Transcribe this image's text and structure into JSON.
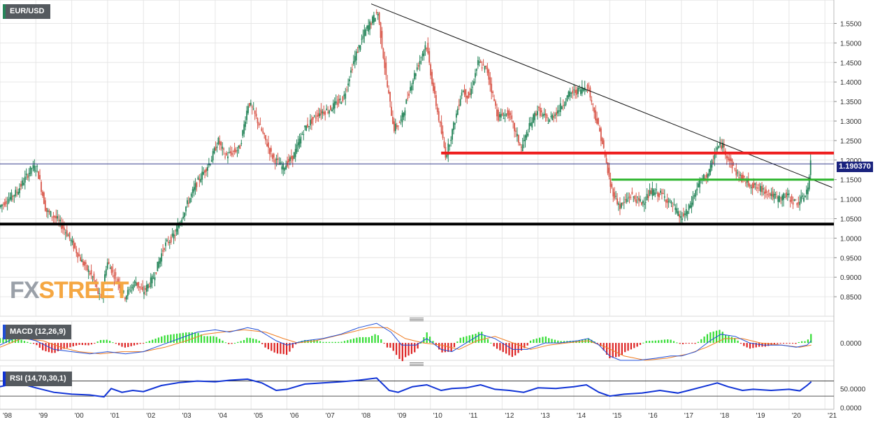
{
  "symbol": "EUR/USD",
  "watermark": {
    "part1": "FX",
    "part2": "STREET"
  },
  "price_tag": "1.190370",
  "colors": {
    "up": "#26855a",
    "down": "#d9594c",
    "grid": "#e6e6e6",
    "resistance": "#ee1c1c",
    "support_green": "#2db52d",
    "support_black": "#000000",
    "price_line": "#1a237e",
    "macd_line": "#1f4ed8",
    "signal_line": "#ef7d22",
    "hist_up": "#33dd33",
    "hist_down": "#dd2222",
    "rsi_line": "#1033d6"
  },
  "chart_data": [
    {
      "panel": "price",
      "type": "candlestick",
      "title": "EUR/USD",
      "ylim": [
        0.8,
        1.61
      ],
      "y_ticks": [
        "1.5500",
        "1.5000",
        "1.4500",
        "1.4000",
        "1.3500",
        "1.3000",
        "1.2500",
        "1.2000",
        "1.1500",
        "1.1000",
        "1.0500",
        "1.0000",
        "0.9500",
        "0.9000",
        "0.8500"
      ],
      "x_ticks": [
        "'98",
        "'99",
        "'00",
        "'01",
        "'02",
        "'03",
        "'04",
        "'05",
        "'06",
        "'07",
        "'08",
        "'09",
        "'10",
        "'11",
        "'12",
        "'13",
        "'14",
        "'15",
        "'16",
        "'17",
        "'18",
        "'19",
        "'20",
        "'21"
      ],
      "x_range": [
        1998.0,
        2021.25
      ],
      "current_price": 1.19037,
      "path_points": [
        [
          1998.0,
          1.08
        ],
        [
          1998.5,
          1.12
        ],
        [
          1998.9,
          1.18
        ],
        [
          1999.05,
          1.18
        ],
        [
          1999.3,
          1.07
        ],
        [
          1999.6,
          1.05
        ],
        [
          1999.9,
          1.01
        ],
        [
          2000.3,
          0.94
        ],
        [
          2000.6,
          0.9
        ],
        [
          2000.83,
          0.84
        ],
        [
          2001.0,
          0.94
        ],
        [
          2001.3,
          0.89
        ],
        [
          2001.5,
          0.85
        ],
        [
          2001.8,
          0.89
        ],
        [
          2002.0,
          0.86
        ],
        [
          2002.3,
          0.9
        ],
        [
          2002.6,
          0.98
        ],
        [
          2002.9,
          1.01
        ],
        [
          2003.2,
          1.08
        ],
        [
          2003.5,
          1.14
        ],
        [
          2003.9,
          1.2
        ],
        [
          2004.1,
          1.25
        ],
        [
          2004.3,
          1.21
        ],
        [
          2004.7,
          1.23
        ],
        [
          2004.95,
          1.35
        ],
        [
          2005.2,
          1.3
        ],
        [
          2005.6,
          1.21
        ],
        [
          2005.9,
          1.18
        ],
        [
          2006.2,
          1.21
        ],
        [
          2006.5,
          1.28
        ],
        [
          2006.9,
          1.32
        ],
        [
          2007.2,
          1.33
        ],
        [
          2007.6,
          1.36
        ],
        [
          2007.9,
          1.46
        ],
        [
          2008.2,
          1.53
        ],
        [
          2008.55,
          1.58
        ],
        [
          2008.8,
          1.4
        ],
        [
          2009.0,
          1.28
        ],
        [
          2009.2,
          1.3
        ],
        [
          2009.5,
          1.4
        ],
        [
          2009.9,
          1.5
        ],
        [
          2010.1,
          1.38
        ],
        [
          2010.45,
          1.21
        ],
        [
          2010.7,
          1.3
        ],
        [
          2010.9,
          1.38
        ],
        [
          2011.1,
          1.36
        ],
        [
          2011.35,
          1.45
        ],
        [
          2011.6,
          1.43
        ],
        [
          2011.9,
          1.31
        ],
        [
          2012.2,
          1.32
        ],
        [
          2012.55,
          1.23
        ],
        [
          2012.8,
          1.29
        ],
        [
          2013.0,
          1.33
        ],
        [
          2013.3,
          1.3
        ],
        [
          2013.6,
          1.33
        ],
        [
          2013.9,
          1.37
        ],
        [
          2014.2,
          1.38
        ],
        [
          2014.4,
          1.39
        ],
        [
          2014.6,
          1.32
        ],
        [
          2014.8,
          1.25
        ],
        [
          2015.05,
          1.13
        ],
        [
          2015.3,
          1.08
        ],
        [
          2015.6,
          1.11
        ],
        [
          2015.9,
          1.09
        ],
        [
          2016.2,
          1.12
        ],
        [
          2016.5,
          1.11
        ],
        [
          2016.8,
          1.08
        ],
        [
          2017.0,
          1.05
        ],
        [
          2017.2,
          1.07
        ],
        [
          2017.5,
          1.14
        ],
        [
          2017.8,
          1.17
        ],
        [
          2018.0,
          1.23
        ],
        [
          2018.15,
          1.24
        ],
        [
          2018.35,
          1.2
        ],
        [
          2018.6,
          1.16
        ],
        [
          2018.9,
          1.14
        ],
        [
          2019.1,
          1.13
        ],
        [
          2019.4,
          1.12
        ],
        [
          2019.7,
          1.1
        ],
        [
          2019.95,
          1.11
        ],
        [
          2020.2,
          1.09
        ],
        [
          2020.4,
          1.1
        ],
        [
          2020.55,
          1.13
        ],
        [
          2020.62,
          1.19
        ]
      ],
      "annotations": [
        {
          "type": "trendline",
          "label": "descending",
          "from": [
            2008.35,
            1.6
          ],
          "to": [
            2021.2,
            1.13
          ]
        },
        {
          "type": "hline",
          "label": "red resistance",
          "y": 1.218,
          "x_from": 2010.3,
          "x_to": 2021.25
        },
        {
          "type": "hline",
          "label": "green support",
          "y": 1.15,
          "x_from": 2015.05,
          "x_to": 2021.25
        },
        {
          "type": "hline",
          "label": "black support",
          "y": 1.036,
          "x_from": 1998.0,
          "x_to": 2021.25
        }
      ]
    },
    {
      "panel": "macd",
      "type": "line+histogram",
      "title": "MACD (12,26,9)",
      "ylim": [
        -0.08,
        0.1
      ],
      "y_ticks": [
        "0.0000"
      ],
      "macd_points": [
        [
          1998.0,
          -0.01
        ],
        [
          1998.5,
          0.03
        ],
        [
          1999.0,
          0.01
        ],
        [
          1999.5,
          -0.03
        ],
        [
          2000.0,
          -0.04
        ],
        [
          2000.5,
          -0.05
        ],
        [
          2001.0,
          -0.04
        ],
        [
          2001.5,
          -0.05
        ],
        [
          2002.0,
          -0.04
        ],
        [
          2002.5,
          -0.01
        ],
        [
          2003.0,
          0.02
        ],
        [
          2003.5,
          0.05
        ],
        [
          2004.0,
          0.06
        ],
        [
          2004.4,
          0.05
        ],
        [
          2004.9,
          0.07
        ],
        [
          2005.2,
          0.06
        ],
        [
          2005.7,
          0.01
        ],
        [
          2006.0,
          -0.01
        ],
        [
          2006.5,
          0.01
        ],
        [
          2007.0,
          0.02
        ],
        [
          2007.5,
          0.04
        ],
        [
          2008.0,
          0.07
        ],
        [
          2008.5,
          0.09
        ],
        [
          2008.9,
          0.05
        ],
        [
          2009.2,
          -0.01
        ],
        [
          2009.6,
          -0.01
        ],
        [
          2009.9,
          0.02
        ],
        [
          2010.3,
          -0.03
        ],
        [
          2010.6,
          -0.04
        ],
        [
          2011.0,
          0.0
        ],
        [
          2011.4,
          0.04
        ],
        [
          2011.8,
          0.02
        ],
        [
          2012.3,
          -0.03
        ],
        [
          2012.7,
          -0.03
        ],
        [
          2013.2,
          0.0
        ],
        [
          2013.6,
          0.0
        ],
        [
          2014.1,
          0.01
        ],
        [
          2014.4,
          0.02
        ],
        [
          2014.7,
          -0.01
        ],
        [
          2015.0,
          -0.06
        ],
        [
          2015.3,
          -0.08
        ],
        [
          2015.8,
          -0.08
        ],
        [
          2016.3,
          -0.07
        ],
        [
          2016.7,
          -0.06
        ],
        [
          2017.0,
          -0.06
        ],
        [
          2017.4,
          -0.04
        ],
        [
          2017.8,
          0.01
        ],
        [
          2018.1,
          0.04
        ],
        [
          2018.5,
          0.03
        ],
        [
          2018.9,
          0.0
        ],
        [
          2019.3,
          -0.01
        ],
        [
          2019.8,
          -0.01
        ],
        [
          2020.2,
          -0.02
        ],
        [
          2020.5,
          -0.01
        ],
        [
          2020.62,
          0.01
        ]
      ],
      "signal_points": [
        [
          1998.0,
          -0.02
        ],
        [
          1998.6,
          0.02
        ],
        [
          1999.2,
          0.01
        ],
        [
          1999.7,
          -0.02
        ],
        [
          2000.2,
          -0.04
        ],
        [
          2000.8,
          -0.05
        ],
        [
          2001.4,
          -0.04
        ],
        [
          2002.0,
          -0.04
        ],
        [
          2002.6,
          -0.02
        ],
        [
          2003.2,
          0.01
        ],
        [
          2003.7,
          0.04
        ],
        [
          2004.2,
          0.05
        ],
        [
          2004.8,
          0.06
        ],
        [
          2005.4,
          0.05
        ],
        [
          2005.9,
          0.02
        ],
        [
          2006.3,
          0.0
        ],
        [
          2006.8,
          0.01
        ],
        [
          2007.3,
          0.03
        ],
        [
          2007.8,
          0.05
        ],
        [
          2008.3,
          0.07
        ],
        [
          2008.8,
          0.07
        ],
        [
          2009.3,
          0.02
        ],
        [
          2009.8,
          0.0
        ],
        [
          2010.3,
          -0.01
        ],
        [
          2010.8,
          -0.03
        ],
        [
          2011.3,
          0.01
        ],
        [
          2011.8,
          0.03
        ],
        [
          2012.3,
          0.0
        ],
        [
          2012.8,
          -0.03
        ],
        [
          2013.3,
          -0.01
        ],
        [
          2013.8,
          0.0
        ],
        [
          2014.4,
          0.01
        ],
        [
          2014.9,
          -0.02
        ],
        [
          2015.4,
          -0.06
        ],
        [
          2016.0,
          -0.08
        ],
        [
          2016.6,
          -0.07
        ],
        [
          2017.2,
          -0.05
        ],
        [
          2017.7,
          -0.02
        ],
        [
          2018.2,
          0.02
        ],
        [
          2018.7,
          0.02
        ],
        [
          2019.2,
          0.0
        ],
        [
          2019.8,
          -0.01
        ],
        [
          2020.3,
          -0.02
        ],
        [
          2020.62,
          -0.01
        ]
      ]
    },
    {
      "panel": "rsi",
      "type": "line",
      "title": "RSI (14,70,30,1)",
      "ylim": [
        -5,
        110
      ],
      "y_ticks": [
        "50.0000",
        "0.0000"
      ],
      "levels": [
        70,
        30
      ],
      "points": [
        [
          1998.0,
          55
        ],
        [
          1998.5,
          65
        ],
        [
          1999.0,
          52
        ],
        [
          1999.5,
          40
        ],
        [
          2000.0,
          35
        ],
        [
          2000.5,
          33
        ],
        [
          2000.9,
          28
        ],
        [
          2001.1,
          50
        ],
        [
          2001.4,
          40
        ],
        [
          2001.7,
          45
        ],
        [
          2002.0,
          42
        ],
        [
          2002.5,
          58
        ],
        [
          2003.0,
          66
        ],
        [
          2003.5,
          70
        ],
        [
          2004.0,
          68
        ],
        [
          2004.4,
          72
        ],
        [
          2004.9,
          75
        ],
        [
          2005.3,
          65
        ],
        [
          2005.7,
          45
        ],
        [
          2006.0,
          48
        ],
        [
          2006.5,
          62
        ],
        [
          2007.0,
          65
        ],
        [
          2007.5,
          68
        ],
        [
          2008.0,
          72
        ],
        [
          2008.5,
          78
        ],
        [
          2008.85,
          45
        ],
        [
          2009.1,
          40
        ],
        [
          2009.5,
          55
        ],
        [
          2009.9,
          60
        ],
        [
          2010.3,
          45
        ],
        [
          2010.6,
          50
        ],
        [
          2011.0,
          52
        ],
        [
          2011.4,
          60
        ],
        [
          2011.8,
          48
        ],
        [
          2012.2,
          45
        ],
        [
          2012.6,
          40
        ],
        [
          2013.0,
          52
        ],
        [
          2013.5,
          50
        ],
        [
          2014.0,
          55
        ],
        [
          2014.35,
          60
        ],
        [
          2014.7,
          40
        ],
        [
          2015.0,
          30
        ],
        [
          2015.4,
          35
        ],
        [
          2015.9,
          38
        ],
        [
          2016.4,
          45
        ],
        [
          2016.9,
          38
        ],
        [
          2017.2,
          45
        ],
        [
          2017.6,
          55
        ],
        [
          2018.0,
          65
        ],
        [
          2018.3,
          55
        ],
        [
          2018.7,
          45
        ],
        [
          2019.0,
          48
        ],
        [
          2019.5,
          45
        ],
        [
          2020.0,
          48
        ],
        [
          2020.3,
          44
        ],
        [
          2020.5,
          58
        ],
        [
          2020.62,
          68
        ]
      ]
    }
  ]
}
